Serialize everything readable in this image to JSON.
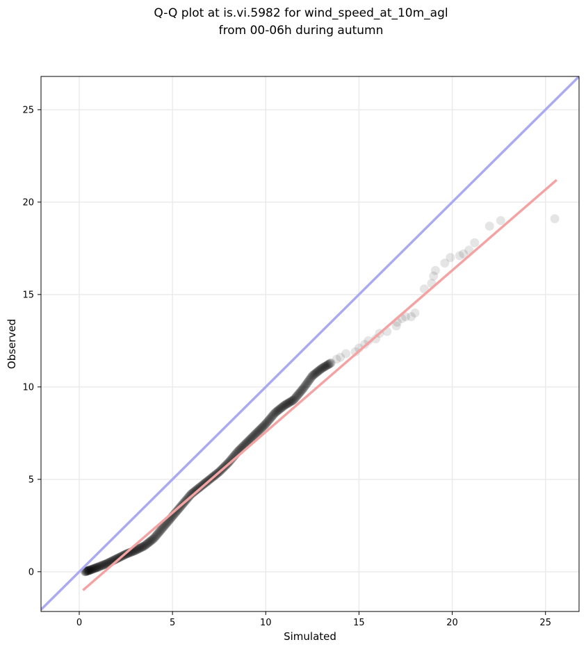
{
  "chart_data": {
    "type": "scatter",
    "title_lines": [
      "Q-Q plot at is.vi.5982 for wind_speed_at_10m_agl",
      "from 00-06h during autumn"
    ],
    "xlabel": "Simulated",
    "ylabel": "Observed",
    "xlim": [
      -2.05,
      26.8
    ],
    "ylim": [
      -2.15,
      26.8
    ],
    "xticks": [
      0,
      5,
      10,
      15,
      20,
      25
    ],
    "yticks": [
      0,
      5,
      10,
      15,
      20,
      25
    ],
    "grid": true,
    "colors": {
      "points": "#000000",
      "identity_line": "#aaaaf0",
      "fit_line": "#f4a3a3",
      "grid": "#ebebeb"
    },
    "identity_line": {
      "x": [
        -2.05,
        26.8
      ],
      "y": [
        -2.05,
        26.8
      ]
    },
    "fit_line": {
      "x": [
        0.2,
        25.6
      ],
      "y": [
        -1.0,
        21.2
      ]
    },
    "quantile_curve": {
      "x": [
        0.3,
        0.6,
        1.0,
        1.5,
        2.0,
        2.5,
        3.0,
        3.5,
        4.0,
        4.5,
        5.0,
        5.5,
        6.0,
        6.5,
        7.0,
        7.5,
        8.0,
        8.5,
        9.0,
        9.5,
        10.0,
        10.5,
        11.0,
        11.5,
        12.0,
        12.5,
        13.0,
        13.5
      ],
      "y": [
        0.0,
        0.1,
        0.25,
        0.45,
        0.7,
        0.95,
        1.15,
        1.4,
        1.8,
        2.4,
        3.0,
        3.6,
        4.2,
        4.6,
        5.0,
        5.4,
        5.9,
        6.5,
        7.0,
        7.5,
        8.0,
        8.6,
        9.0,
        9.3,
        9.9,
        10.6,
        11.0,
        11.3
      ]
    },
    "tail_points": {
      "x": [
        13.8,
        14.0,
        14.3,
        14.8,
        15.0,
        15.3,
        15.5,
        15.9,
        16.1,
        16.5,
        17.0,
        17.05,
        17.3,
        17.5,
        17.8,
        18.0,
        18.5,
        18.9,
        19.0,
        19.1,
        19.6,
        19.9,
        20.4,
        20.6,
        20.9,
        21.2,
        22.0,
        22.6,
        25.5
      ],
      "y": [
        11.5,
        11.6,
        11.8,
        11.9,
        12.1,
        12.3,
        12.5,
        12.6,
        12.9,
        13.0,
        13.3,
        13.5,
        13.7,
        13.8,
        13.8,
        14.0,
        15.3,
        15.6,
        16.0,
        16.3,
        16.7,
        17.0,
        17.1,
        17.2,
        17.4,
        17.8,
        18.7,
        19.0,
        19.1
      ]
    }
  }
}
